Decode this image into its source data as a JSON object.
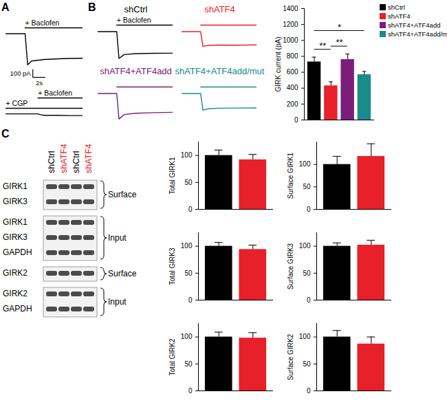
{
  "panel_labels": [
    "A",
    "B",
    "C"
  ],
  "chart_data": [
    {
      "type": "line",
      "x": [
        0,
        3,
        3.4,
        4,
        6,
        9,
        12
      ],
      "values": [
        0,
        0,
        -400,
        -350,
        -330,
        -320,
        -315
      ],
      "color": "#000000",
      "xlim": [
        0,
        12
      ],
      "ylim": [
        -560,
        40
      ],
      "tick_labels": false,
      "annotations": [
        {
          "text": "+ Baclofen",
          "from": 3,
          "to": 12
        }
      ],
      "scale_bar": {
        "x": 2,
        "y": 100,
        "x_label": "2s",
        "y_label": "100 pA"
      }
    },
    {
      "type": "line",
      "x": [
        0,
        5,
        5.4,
        6,
        8,
        10,
        12
      ],
      "values": [
        0,
        0,
        -6,
        -10,
        -10,
        -12,
        -12
      ],
      "color": "#000000",
      "xlim": [
        0,
        12
      ],
      "ylim": [
        -100,
        20
      ],
      "tick_labels": false,
      "annotations": [
        {
          "text": "+ Baclofen",
          "from": 5,
          "to": 12
        },
        {
          "text": "+ CGP",
          "from": 0,
          "to": 12
        }
      ]
    },
    {
      "type": "line",
      "title": "shCtrl",
      "x": [
        0,
        2.5,
        2.8,
        3.5,
        5,
        7.5,
        10
      ],
      "values": [
        0,
        0,
        -420,
        -360,
        -345,
        -340,
        -338
      ],
      "color": "#000000",
      "xlim": [
        0,
        10
      ],
      "ylim": [
        -480,
        60
      ],
      "tick_labels": false,
      "annotations": [
        {
          "text": "+ Baclofen",
          "from": 2.5,
          "to": 10
        }
      ]
    },
    {
      "type": "line",
      "title": "shATF4",
      "x": [
        0,
        2.5,
        2.8,
        3.5,
        5,
        7.5,
        10
      ],
      "values": [
        0,
        0,
        -230,
        -215,
        -210,
        -212,
        -208
      ],
      "color": "#e8202a",
      "xlim": [
        0,
        10
      ],
      "ylim": [
        -480,
        60
      ],
      "tick_labels": false,
      "annotations": [
        {
          "from": 2.5,
          "to": 10
        }
      ]
    },
    {
      "type": "line",
      "title": "shATF4+ATF4add",
      "x": [
        0,
        2.5,
        2.8,
        3.5,
        5,
        7.5,
        10
      ],
      "values": [
        0,
        0,
        -400,
        -330,
        -310,
        -300,
        -295
      ],
      "color": "#7b1e7a",
      "xlim": [
        0,
        10
      ],
      "ylim": [
        -480,
        60
      ],
      "tick_labels": false,
      "annotations": [
        {
          "from": 2.5,
          "to": 10
        }
      ]
    },
    {
      "type": "line",
      "title": "shATF4+ATF4add/mut",
      "x": [
        0,
        2.5,
        2.8,
        3.5,
        5,
        7.5,
        10
      ],
      "values": [
        0,
        0,
        -260,
        -240,
        -230,
        -228,
        -226
      ],
      "color": "#1a8a8a",
      "xlim": [
        0,
        10
      ],
      "ylim": [
        -480,
        60
      ],
      "tick_labels": false,
      "annotations": [
        {
          "from": 2.5,
          "to": 10
        }
      ]
    },
    {
      "type": "bar",
      "categories": [
        "shCtrl",
        "shATF4",
        "shATF4+ATF4add",
        "shATF4+ATF4add/mut"
      ],
      "values": [
        730,
        430,
        760,
        570
      ],
      "errors": [
        60,
        50,
        70,
        40
      ],
      "colors": [
        "#000000",
        "#e8202a",
        "#7b1e7a",
        "#1a8a8a"
      ],
      "ylabel": "GIRK current (pA)",
      "ylim": [
        0,
        1400
      ],
      "yticks": [
        0,
        200,
        400,
        600,
        800,
        1000,
        1200,
        1400
      ],
      "legend": "top-right",
      "tick_labels": "y",
      "significance": [
        {
          "from": 0,
          "to": 1,
          "label": "**"
        },
        {
          "from": 1,
          "to": 2,
          "label": "**"
        },
        {
          "from": 0,
          "to": 3,
          "label": "*"
        }
      ]
    },
    {
      "type": "bar",
      "ylabel": "Total GIRK1",
      "values": [
        100,
        92
      ],
      "errors": [
        10,
        10
      ],
      "colors": [
        "#000000",
        "#e8202a"
      ],
      "ylim": [
        0,
        125
      ],
      "yticks": [
        0,
        50,
        100
      ],
      "tick_labels": "y"
    },
    {
      "type": "bar",
      "ylabel": "Surface GIRK1",
      "values": [
        100,
        118
      ],
      "errors": [
        18,
        28
      ],
      "colors": [
        "#000000",
        "#e8202a"
      ],
      "ylim": [
        0,
        150
      ],
      "yticks": [
        0,
        50,
        100
      ],
      "tick_labels": "y"
    },
    {
      "type": "bar",
      "ylabel": "Total GIRK3",
      "values": [
        100,
        94
      ],
      "errors": [
        7,
        8
      ],
      "colors": [
        "#000000",
        "#e8202a"
      ],
      "ylim": [
        0,
        125
      ],
      "yticks": [
        0,
        50,
        100
      ],
      "tick_labels": "y"
    },
    {
      "type": "bar",
      "ylabel": "Surface GIRK3",
      "values": [
        100,
        102
      ],
      "errors": [
        6,
        9
      ],
      "colors": [
        "#000000",
        "#e8202a"
      ],
      "ylim": [
        0,
        125
      ],
      "yticks": [
        0,
        50,
        100
      ],
      "tick_labels": "y"
    },
    {
      "type": "bar",
      "ylabel": "Total GIRK2",
      "values": [
        100,
        98
      ],
      "errors": [
        9,
        10
      ],
      "colors": [
        "#000000",
        "#e8202a"
      ],
      "ylim": [
        0,
        125
      ],
      "yticks": [
        0,
        50,
        100
      ],
      "tick_labels": "y"
    },
    {
      "type": "bar",
      "ylabel": "Surface GIRK2",
      "values": [
        100,
        87
      ],
      "errors": [
        12,
        13
      ],
      "colors": [
        "#000000",
        "#e8202a"
      ],
      "ylim": [
        0,
        125
      ],
      "yticks": [
        0,
        50,
        100
      ],
      "tick_labels": "y"
    }
  ],
  "blot": {
    "lanes": [
      "shCtrl",
      "shATF4",
      "shCtrl",
      "shATF4"
    ],
    "groups": [
      {
        "label": "Surface",
        "rows": [
          "GIRK1",
          "GIRK3"
        ]
      },
      {
        "label": "Input",
        "rows": [
          "GIRK1",
          "GIRK3",
          "GAPDH"
        ]
      },
      {
        "label": "Surface",
        "rows": [
          "GIRK2"
        ]
      },
      {
        "label": "Input",
        "rows": [
          "GIRK2",
          "GAPDH"
        ]
      }
    ]
  }
}
